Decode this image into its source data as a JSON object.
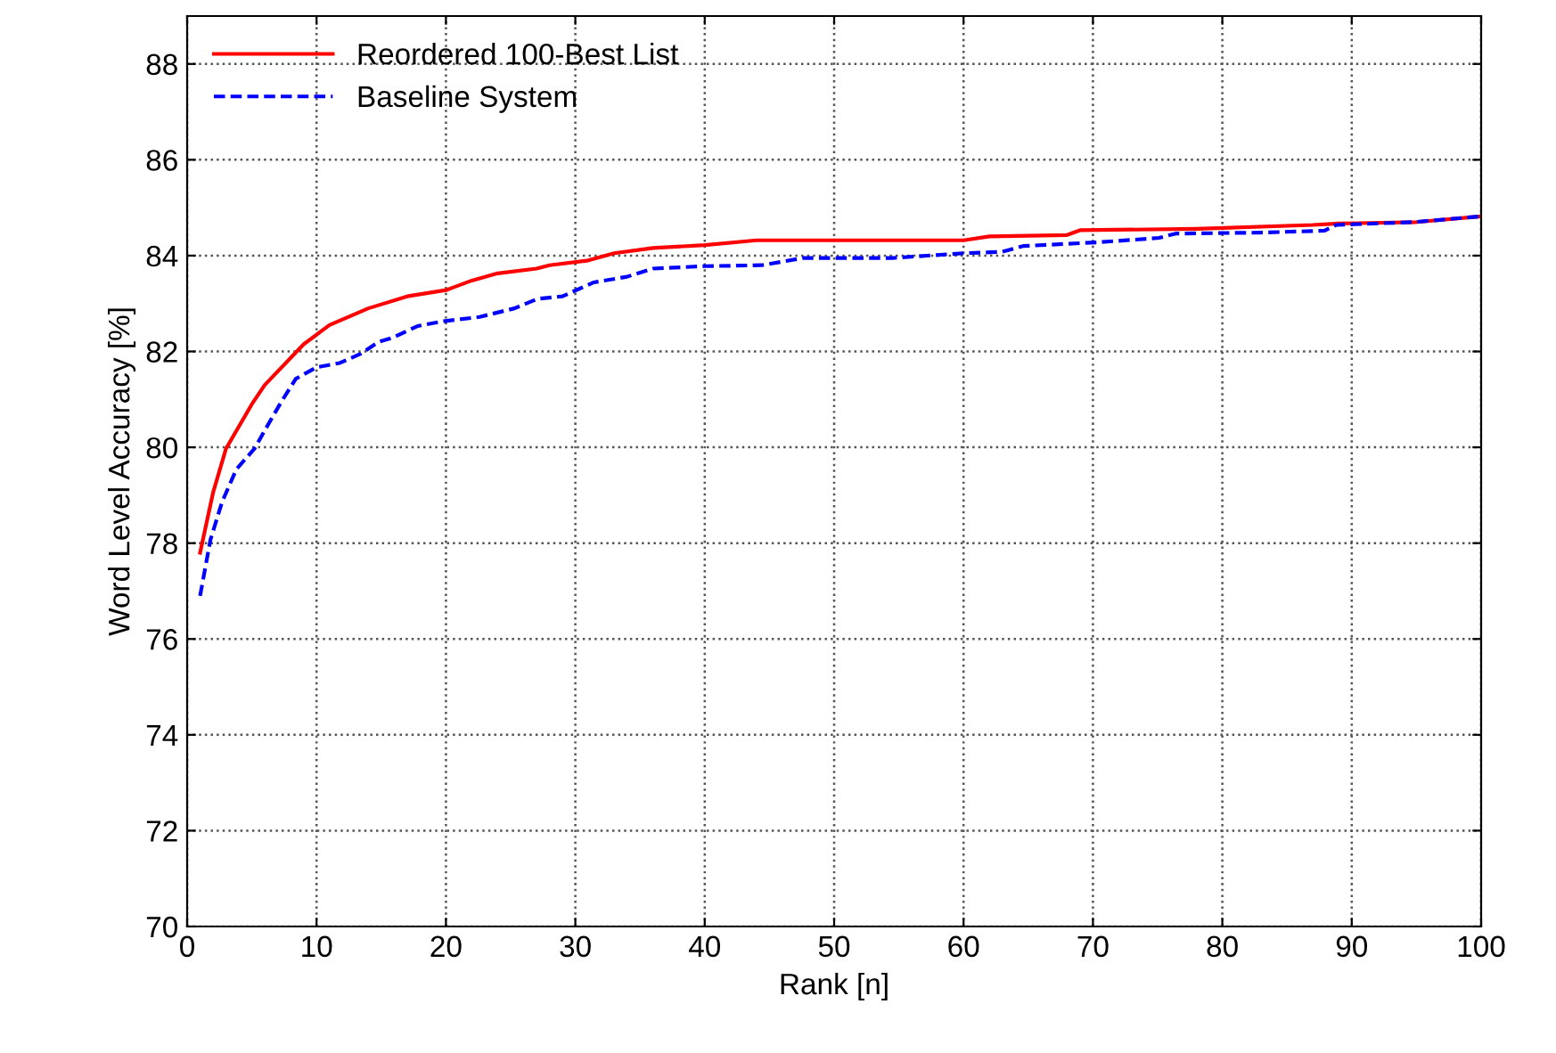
{
  "chart_data": {
    "type": "line",
    "xlabel": "Rank [n]",
    "ylabel": "Word Level Accuracy [%]",
    "xlim": [
      0,
      100
    ],
    "xticks": [
      0,
      10,
      20,
      30,
      40,
      50,
      60,
      70,
      80,
      90,
      100
    ],
    "ylim": [
      70,
      89
    ],
    "yticks": [
      70,
      72,
      74,
      76,
      78,
      80,
      82,
      84,
      86,
      88
    ],
    "grid": true,
    "legend": "top left",
    "marker": "none",
    "series": [
      {
        "name": "Reordered 100-Best List",
        "color": "#ff0000",
        "line_style": "solid",
        "x": [
          1,
          2,
          3,
          5,
          6,
          9,
          11,
          14,
          17,
          20,
          22,
          24,
          27,
          28,
          31,
          33,
          36,
          40,
          44,
          60,
          62,
          68,
          69,
          78,
          87,
          89,
          95,
          100
        ],
        "values": [
          77.8,
          79.05,
          79.97,
          80.9,
          81.3,
          82.15,
          82.55,
          82.9,
          83.15,
          83.28,
          83.48,
          83.63,
          83.73,
          83.8,
          83.9,
          84.05,
          84.16,
          84.22,
          84.32,
          84.32,
          84.4,
          84.43,
          84.53,
          84.56,
          84.64,
          84.67,
          84.7,
          84.82
        ]
      },
      {
        "name": "Baseline System",
        "color": "#0000ff",
        "line_style": "dashed",
        "x": [
          1,
          1.8,
          2.7,
          3.8,
          5.2,
          6.1,
          7.3,
          8.4,
          10,
          11.8,
          13.4,
          14.8,
          15.9,
          17.8,
          19.8,
          22.6,
          25.3,
          27.1,
          29,
          31.4,
          34,
          36,
          40,
          44.4,
          47.6,
          54.5,
          60,
          63,
          64.6,
          70.5,
          75.1,
          76.4,
          82.9,
          87.9,
          88.8,
          94.8,
          100
        ],
        "values": [
          76.9,
          78.07,
          78.86,
          79.54,
          79.97,
          80.4,
          80.96,
          81.43,
          81.67,
          81.76,
          81.95,
          82.2,
          82.29,
          82.53,
          82.63,
          82.72,
          82.9,
          83.1,
          83.15,
          83.44,
          83.56,
          83.73,
          83.78,
          83.8,
          83.95,
          83.95,
          84.05,
          84.08,
          84.2,
          84.28,
          84.37,
          84.46,
          84.48,
          84.52,
          84.64,
          84.7,
          84.82
        ]
      }
    ]
  }
}
